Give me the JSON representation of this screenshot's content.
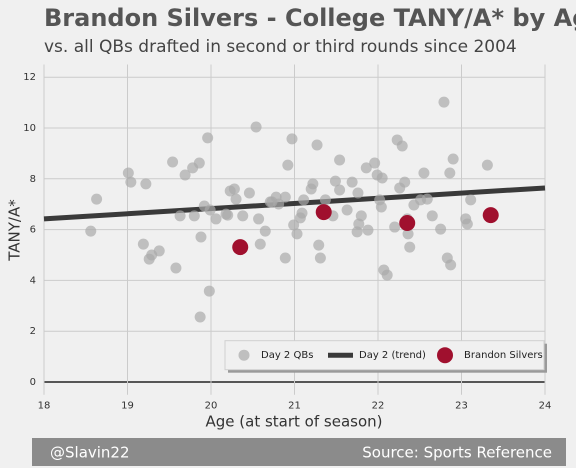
{
  "chart_data": {
    "type": "scatter",
    "title": "Brandon Silvers - College TANY/A* by Age",
    "subtitle": "vs. all QBs drafted in second or third rounds since 2004",
    "x_label": "Age (at start of season)",
    "y_label": "TANY/A*",
    "credit": "@Slavin22",
    "source": "Source: Sports Reference",
    "xlim": [
      18,
      24
    ],
    "xticks": [
      18,
      19,
      20,
      21,
      22,
      23,
      24
    ],
    "ylim": [
      -0.5,
      12.5
    ],
    "yticks": [
      0,
      2,
      4,
      6,
      8,
      10,
      12
    ],
    "grid": true,
    "legend": "lower right",
    "series": [
      {
        "name": "Day 2 QBs",
        "type": "scatter",
        "color": "#a9a9a9",
        "x": [
          18.56,
          18.63,
          19.01,
          19.04,
          19.22,
          19.19,
          19.26,
          19.29,
          19.38,
          19.54,
          19.58,
          19.63,
          19.69,
          19.78,
          19.86,
          19.8,
          19.88,
          19.92,
          19.96,
          19.98,
          19.87,
          19.99,
          20.06,
          20.18,
          20.2,
          20.23,
          20.28,
          20.3,
          20.38,
          20.46,
          20.54,
          20.57,
          20.59,
          20.65,
          20.71,
          20.73,
          20.78,
          20.81,
          20.89,
          20.89,
          20.92,
          20.97,
          20.99,
          21.03,
          21.07,
          21.09,
          21.11,
          21.2,
          21.22,
          21.27,
          21.29,
          21.31,
          21.34,
          21.37,
          21.46,
          21.49,
          21.54,
          21.54,
          21.63,
          21.69,
          21.75,
          21.77,
          21.76,
          21.8,
          21.86,
          21.88,
          21.96,
          21.99,
          22.02,
          22.04,
          22.05,
          22.07,
          22.11,
          22.2,
          22.23,
          22.29,
          22.26,
          22.32,
          22.35,
          22.36,
          22.38,
          22.43,
          22.51,
          22.55,
          22.59,
          22.65,
          22.75,
          22.79,
          22.83,
          22.87,
          22.9,
          22.86,
          23.05,
          23.07,
          23.11,
          23.31
        ],
        "values": [
          5.94,
          7.2,
          8.23,
          7.87,
          7.8,
          5.43,
          4.84,
          5.0,
          5.16,
          8.66,
          4.49,
          6.54,
          8.15,
          8.43,
          8.62,
          6.54,
          5.71,
          6.93,
          9.61,
          3.58,
          2.56,
          6.77,
          6.42,
          6.61,
          6.57,
          7.52,
          7.6,
          7.2,
          6.54,
          7.44,
          10.04,
          6.42,
          5.43,
          5.94,
          7.09,
          7.09,
          7.28,
          7.01,
          4.88,
          7.28,
          8.54,
          9.57,
          6.18,
          5.83,
          6.46,
          6.65,
          7.17,
          7.6,
          7.8,
          9.33,
          5.39,
          4.88,
          6.69,
          7.17,
          6.54,
          7.91,
          8.74,
          7.56,
          6.77,
          7.87,
          5.91,
          6.22,
          7.44,
          6.54,
          8.43,
          5.98,
          8.62,
          8.15,
          7.17,
          6.89,
          8.03,
          4.41,
          4.21,
          6.1,
          9.53,
          9.29,
          7.64,
          7.87,
          6.42,
          5.83,
          5.31,
          6.97,
          7.17,
          8.23,
          7.2,
          6.54,
          6.02,
          11.02,
          4.88,
          4.61,
          8.78,
          8.23,
          6.42,
          6.22,
          7.17,
          8.54
        ]
      },
      {
        "name": "Day 2 (trend)",
        "type": "line",
        "color": "#3a3a3a",
        "x": [
          18,
          24
        ],
        "values": [
          6.42,
          7.64
        ]
      },
      {
        "name": "Brandon Silvers",
        "type": "scatter",
        "color": "#a0102e",
        "x": [
          20.35,
          21.35,
          22.35,
          23.35
        ],
        "values": [
          5.31,
          6.69,
          6.26,
          6.57
        ]
      }
    ]
  }
}
